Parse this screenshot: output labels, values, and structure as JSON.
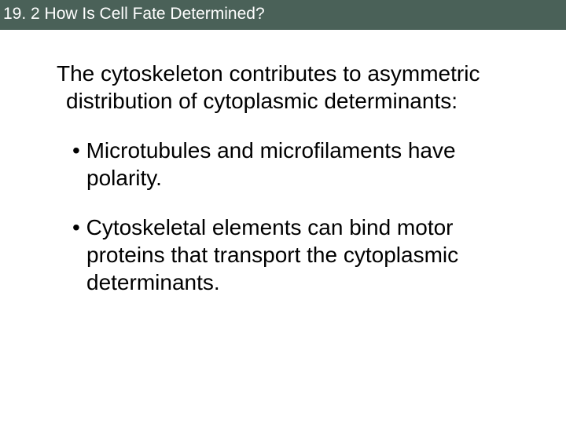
{
  "header": {
    "title": "19. 2 How Is Cell Fate Determined?"
  },
  "content": {
    "intro": "The cytoskeleton contributes to asymmetric distribution of cytoplasmic determinants:",
    "bullets": [
      "Microtubules and microfilaments have polarity.",
      "Cytoskeletal elements can bind motor proteins that transport the cytoplasmic determinants."
    ]
  },
  "colors": {
    "header_bg": "#4a6158",
    "header_text": "#ffffff",
    "body_bg": "#ffffff",
    "body_text": "#000000"
  },
  "typography": {
    "header_fontsize": 21,
    "body_fontsize": 28,
    "font_family": "Arial"
  }
}
